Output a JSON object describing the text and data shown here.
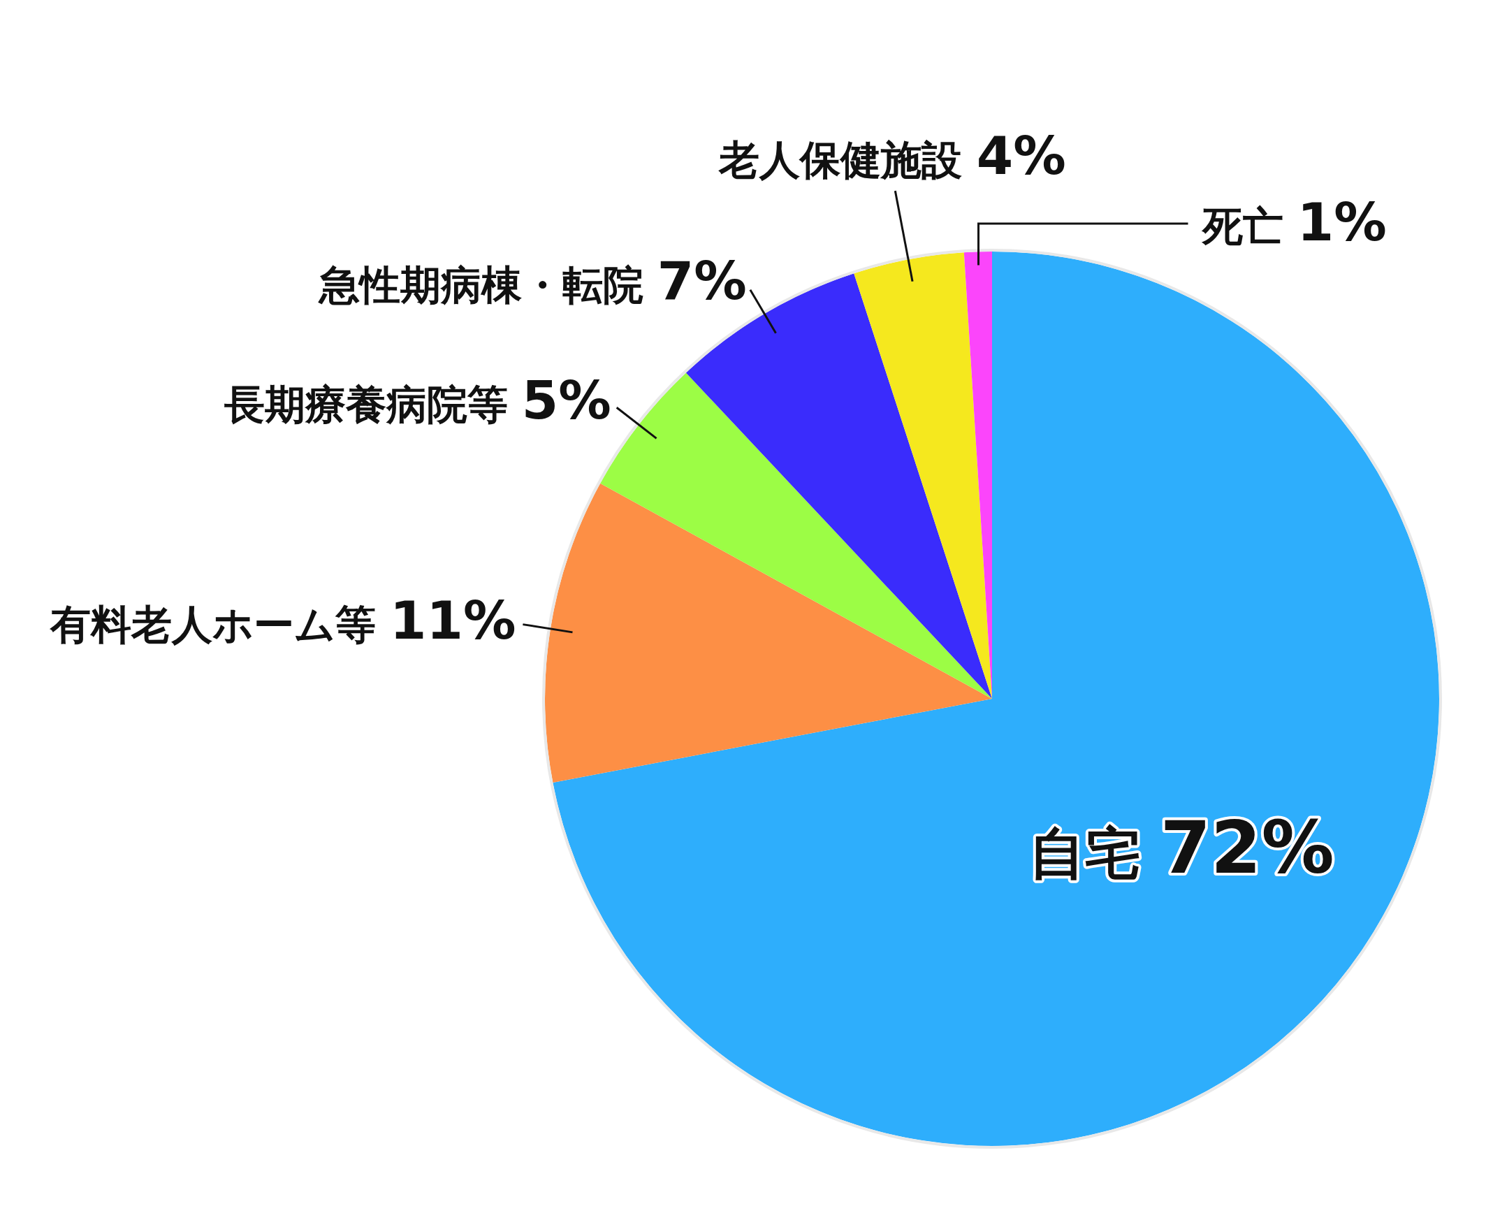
{
  "chart_data": {
    "type": "pie",
    "categories": [
      "自宅",
      "有料老人ホーム等",
      "長期療養病院等",
      "急性期病棟・転院",
      "老人保健施設",
      "死亡"
    ],
    "values": [
      72,
      11,
      5,
      7,
      4,
      1
    ],
    "value_labels": [
      "72%",
      "11%",
      "5%",
      "7%",
      "4%",
      "1%"
    ],
    "colors": [
      "#2eaefc",
      "#fd8f45",
      "#9cfd45",
      "#3a2cfc",
      "#f5e81e",
      "#fb45fb"
    ]
  }
}
